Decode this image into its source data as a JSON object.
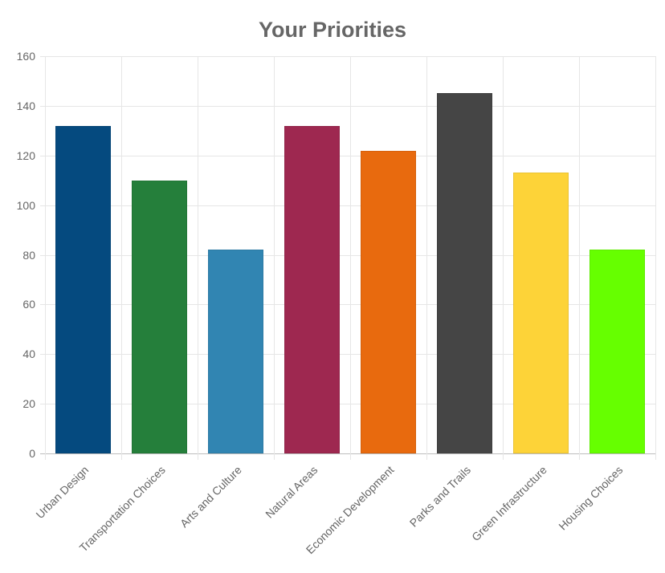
{
  "chart_data": {
    "type": "bar",
    "title": "Your Priorities",
    "xlabel": "",
    "ylabel": "",
    "ylim": [
      0,
      160
    ],
    "yticks": [
      0,
      20,
      40,
      60,
      80,
      100,
      120,
      140,
      160
    ],
    "grid": true,
    "legend": "none",
    "categories": [
      "Urban Design",
      "Transportation Choices",
      "Arts and Culture",
      "Natural Areas",
      "Economic Development",
      "Parks and Trails",
      "Green Infrastructure",
      "Housing Choices"
    ],
    "values": [
      132,
      110,
      82,
      132,
      122,
      145,
      113,
      82
    ],
    "colors": [
      "#054a7f",
      "#257f3b",
      "#3185b2",
      "#9e2850",
      "#e86a0e",
      "#454545",
      "#fdd338",
      "#66ff00"
    ]
  }
}
